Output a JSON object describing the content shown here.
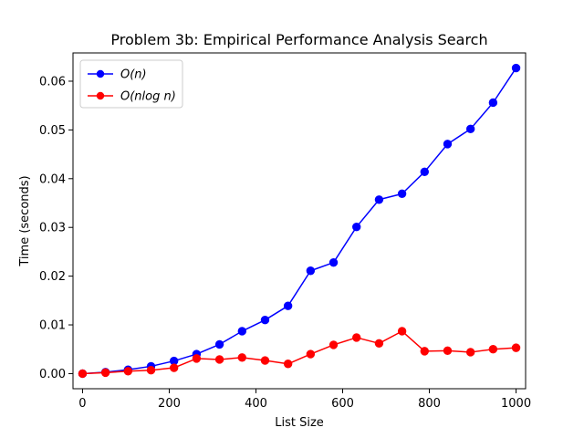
{
  "chart_data": {
    "type": "line",
    "title": "Problem 3b: Empirical Performance Analysis Search",
    "xlabel": "List Size",
    "ylabel": "Time (seconds)",
    "xlim": [
      -22,
      1022
    ],
    "ylim": [
      -0.0031,
      0.0658
    ],
    "xticks": [
      0,
      200,
      400,
      600,
      800,
      1000
    ],
    "yticks": [
      0.0,
      0.01,
      0.02,
      0.03,
      0.04,
      0.05,
      0.06
    ],
    "xtick_labels": [
      "0",
      "200",
      "400",
      "600",
      "800",
      "1000"
    ],
    "ytick_labels": [
      "0.00",
      "0.01",
      "0.02",
      "0.03",
      "0.04",
      "0.05",
      "0.06"
    ],
    "grid": false,
    "legend_position": "top-left",
    "x": [
      0,
      53,
      105,
      158,
      211,
      263,
      316,
      368,
      421,
      474,
      526,
      579,
      632,
      684,
      737,
      789,
      842,
      895,
      947,
      1000
    ],
    "series": [
      {
        "name": "O(n)",
        "color": "#0000ff",
        "marker": "circle",
        "values": [
          0.0,
          0.0003,
          0.0008,
          0.0015,
          0.0026,
          0.004,
          0.006,
          0.0087,
          0.011,
          0.0139,
          0.0211,
          0.0228,
          0.0301,
          0.0357,
          0.0369,
          0.0414,
          0.0471,
          0.0502,
          0.0556,
          0.0627
        ]
      },
      {
        "name": "O(nlog n)",
        "color": "#ff0000",
        "marker": "circle",
        "values": [
          0.0,
          0.0002,
          0.0005,
          0.0007,
          0.0012,
          0.0031,
          0.0029,
          0.0033,
          0.0027,
          0.002,
          0.004,
          0.0059,
          0.0074,
          0.0062,
          0.0087,
          0.0046,
          0.0047,
          0.0044,
          0.005,
          0.0053
        ]
      }
    ]
  }
}
